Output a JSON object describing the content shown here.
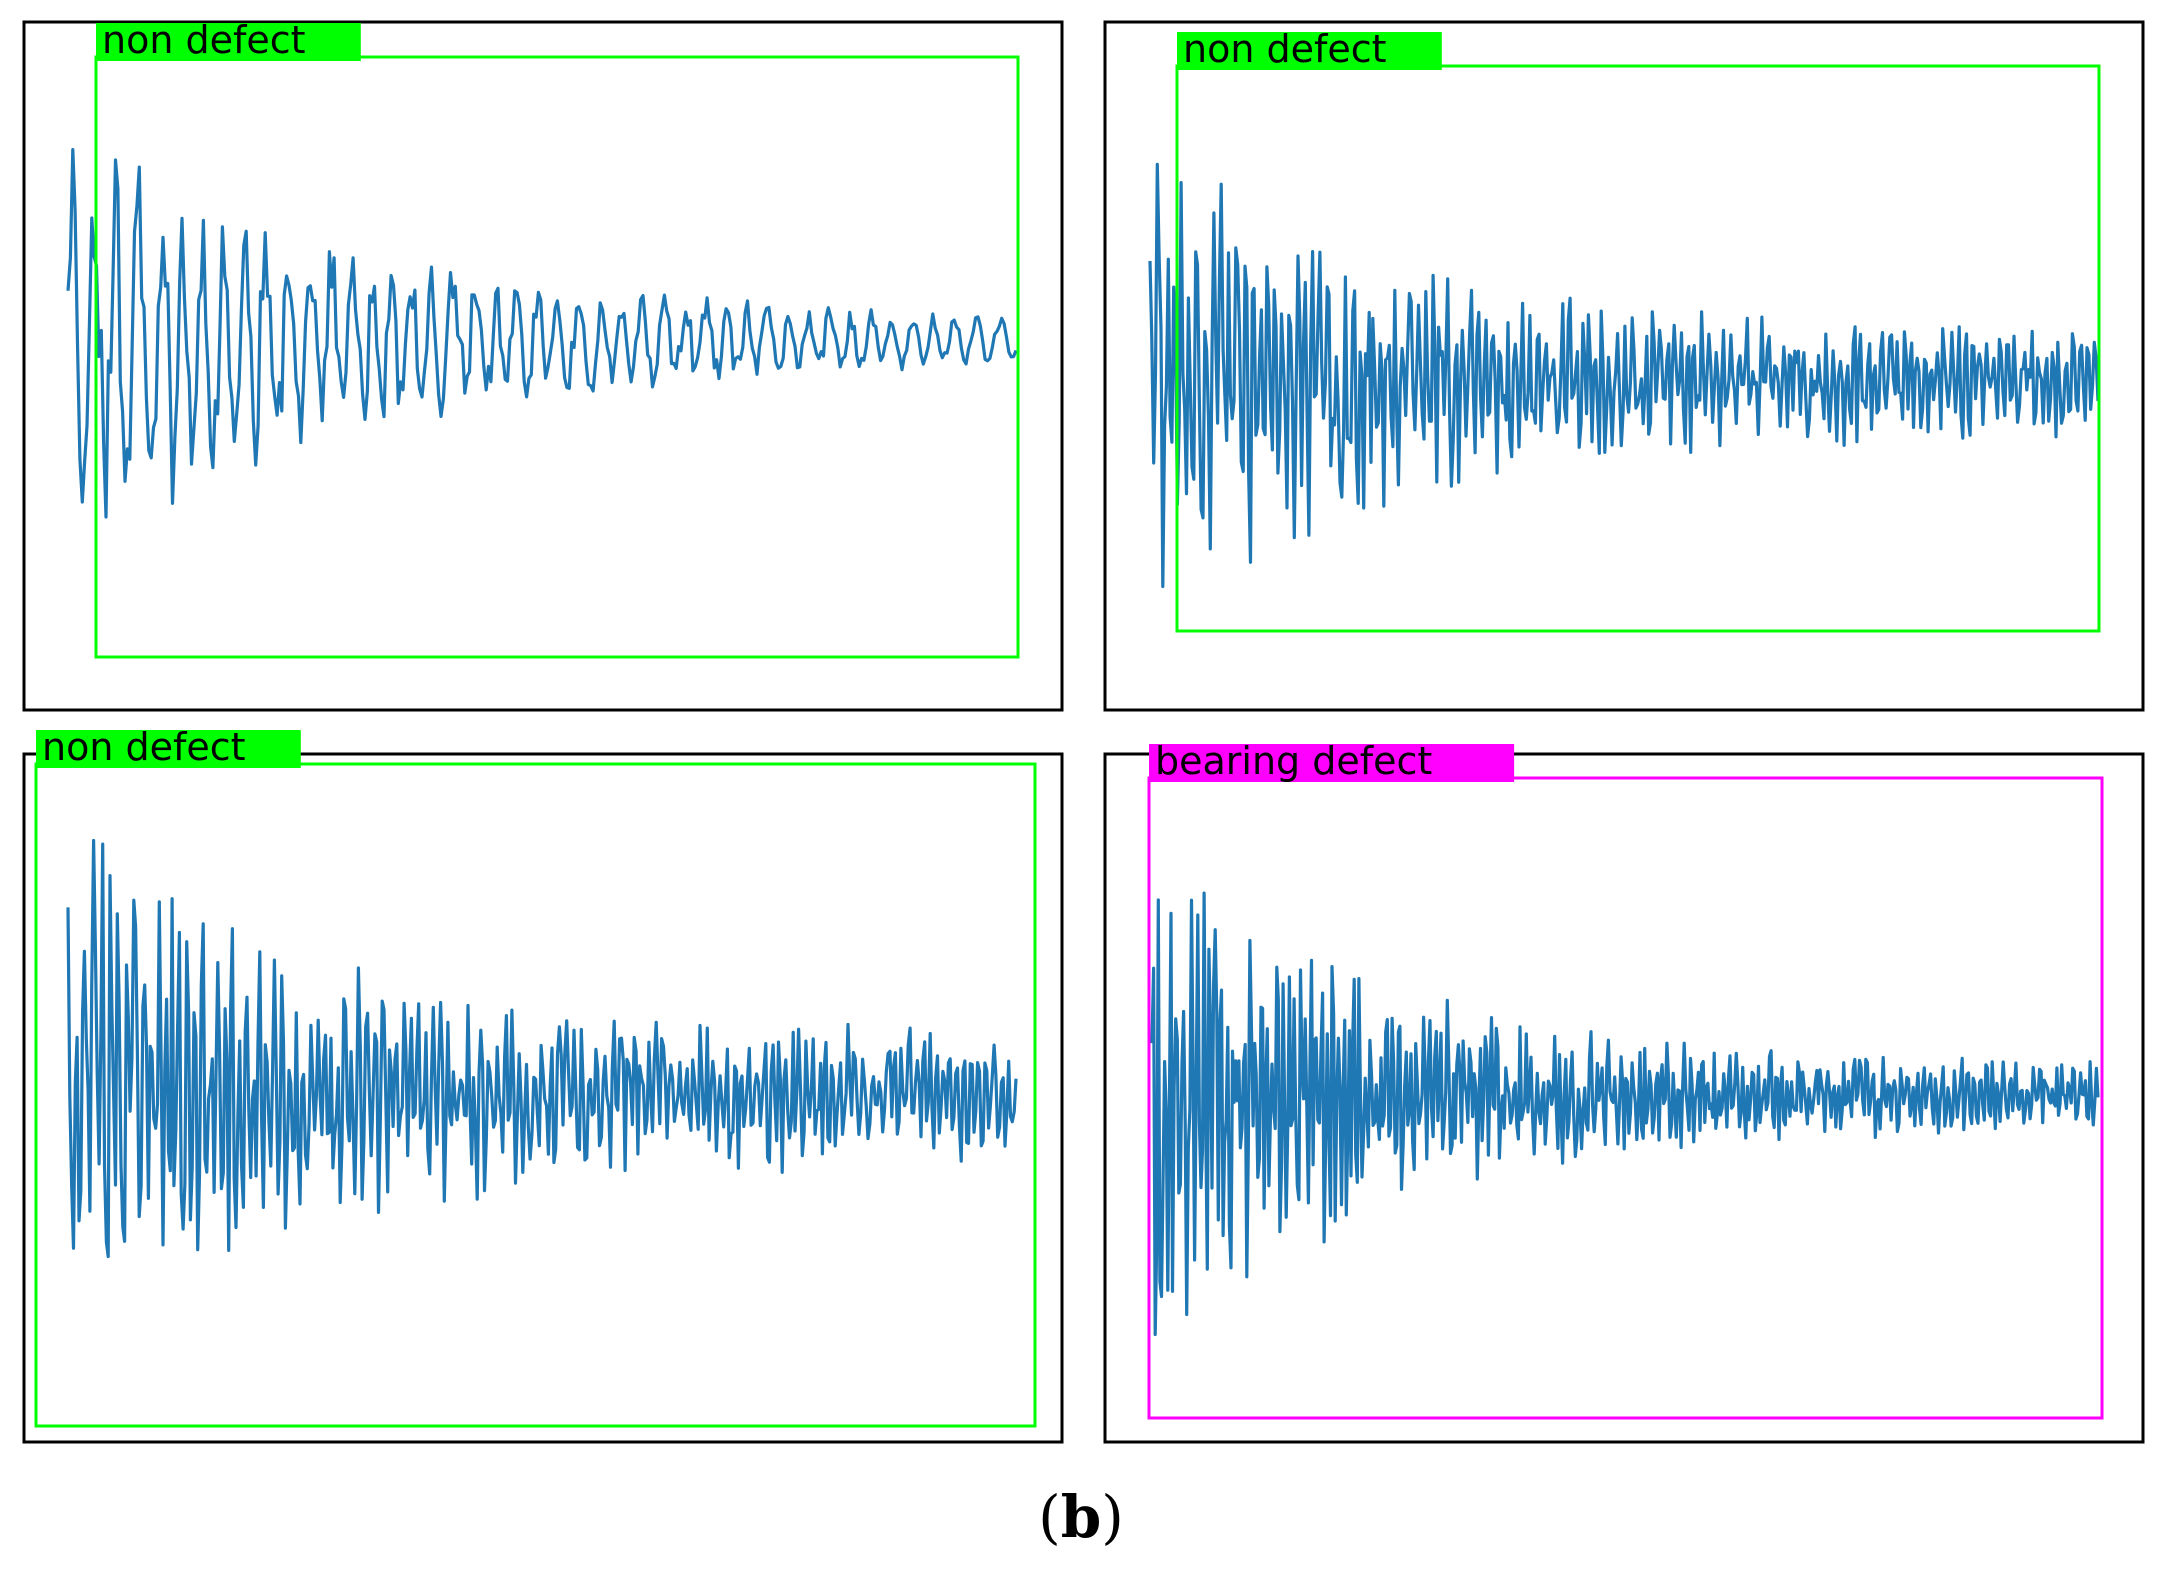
{
  "caption": {
    "open": "(",
    "letter": "b",
    "close": ")"
  },
  "colors": {
    "signal": "#1f77b4",
    "non_defect": "#00ff00",
    "bearing_defect": "#ff00ff",
    "frame": "#000000"
  },
  "chart_data": [
    {
      "type": "line",
      "panel": "top-left",
      "detection_label": "non defect",
      "detection_class": "non_defect",
      "n_points": 400,
      "y_range": [
        -1,
        1
      ],
      "waveform": {
        "base": 0.1,
        "amp_start": 0.95,
        "amp_end": 0.08,
        "decay": 3.2,
        "seed": 11,
        "freq": 0.22,
        "noise": 0.55
      }
    },
    {
      "type": "line",
      "panel": "top-right",
      "detection_label": "non defect",
      "detection_class": "non_defect",
      "n_points": 520,
      "y_range": [
        -1,
        1
      ],
      "waveform": {
        "base": -0.02,
        "amp_start": 0.95,
        "amp_end": 0.2,
        "decay": 4.5,
        "seed": 23,
        "freq": 0.5,
        "noise": 0.9
      }
    },
    {
      "type": "line",
      "panel": "bottom-left",
      "detection_label": "non defect",
      "detection_class": "non_defect",
      "n_points": 520,
      "y_range": [
        -1,
        1
      ],
      "waveform": {
        "base": 0.0,
        "amp_start": 0.95,
        "amp_end": 0.22,
        "decay": 4.0,
        "seed": 37,
        "freq": 0.5,
        "noise": 0.9
      }
    },
    {
      "type": "line",
      "panel": "bottom-right",
      "detection_label": "bearing defect",
      "detection_class": "bearing_defect",
      "n_points": 600,
      "y_range": [
        -1,
        1
      ],
      "waveform": {
        "base": 0.0,
        "amp_start": 1.0,
        "amp_end": 0.12,
        "decay": 5.0,
        "seed": 53,
        "freq": 0.55,
        "noise": 1.0
      }
    }
  ]
}
